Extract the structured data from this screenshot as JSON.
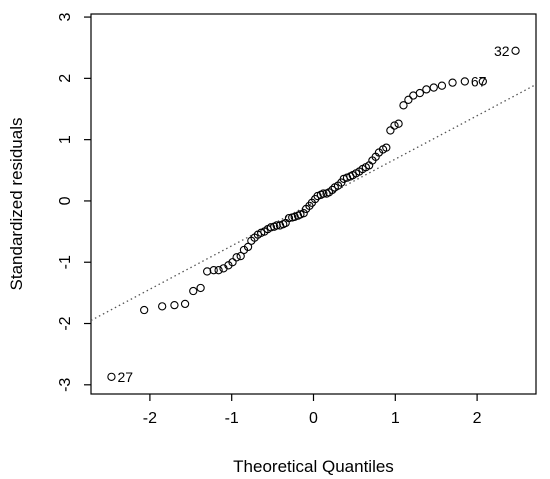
{
  "chart_data": {
    "type": "scatter",
    "title": "",
    "xlabel": "Theoretical Quantiles",
    "ylabel": "Standardized residuals",
    "xlim": [
      -2.72,
      2.72
    ],
    "ylim": [
      -3.15,
      3.05
    ],
    "xticks": [
      "-2",
      "-1",
      "0",
      "1",
      "2"
    ],
    "yticks": [
      "-3",
      "-2",
      "-1",
      "0",
      "1",
      "2",
      "3"
    ],
    "grid": false,
    "marker": "open-circle",
    "reference_line": {
      "style": "dotted",
      "color": "#555555",
      "points": [
        [
          -2.72,
          -1.95
        ],
        [
          2.72,
          1.9
        ]
      ]
    },
    "points": [
      [
        -2.47,
        -2.87
      ],
      [
        -2.07,
        -1.78
      ],
      [
        -1.85,
        -1.72
      ],
      [
        -1.7,
        -1.7
      ],
      [
        -1.57,
        -1.68
      ],
      [
        -1.47,
        -1.47
      ],
      [
        -1.38,
        -1.42
      ],
      [
        -1.3,
        -1.15
      ],
      [
        -1.22,
        -1.13
      ],
      [
        -1.16,
        -1.13
      ],
      [
        -1.1,
        -1.1
      ],
      [
        -1.04,
        -1.05
      ],
      [
        -0.99,
        -1.0
      ],
      [
        -0.94,
        -0.92
      ],
      [
        -0.89,
        -0.9
      ],
      [
        -0.85,
        -0.8
      ],
      [
        -0.8,
        -0.75
      ],
      [
        -0.76,
        -0.65
      ],
      [
        -0.72,
        -0.6
      ],
      [
        -0.68,
        -0.55
      ],
      [
        -0.64,
        -0.52
      ],
      [
        -0.6,
        -0.5
      ],
      [
        -0.56,
        -0.46
      ],
      [
        -0.52,
        -0.43
      ],
      [
        -0.48,
        -0.42
      ],
      [
        -0.45,
        -0.4
      ],
      [
        -0.41,
        -0.4
      ],
      [
        -0.37,
        -0.38
      ],
      [
        -0.34,
        -0.36
      ],
      [
        -0.3,
        -0.28
      ],
      [
        -0.26,
        -0.27
      ],
      [
        -0.23,
        -0.26
      ],
      [
        -0.19,
        -0.24
      ],
      [
        -0.16,
        -0.22
      ],
      [
        -0.12,
        -0.2
      ],
      [
        -0.09,
        -0.13
      ],
      [
        -0.05,
        -0.08
      ],
      [
        -0.02,
        -0.03
      ],
      [
        0.02,
        0.03
      ],
      [
        0.05,
        0.08
      ],
      [
        0.09,
        0.1
      ],
      [
        0.12,
        0.12
      ],
      [
        0.16,
        0.12
      ],
      [
        0.19,
        0.14
      ],
      [
        0.23,
        0.18
      ],
      [
        0.26,
        0.22
      ],
      [
        0.3,
        0.25
      ],
      [
        0.34,
        0.3
      ],
      [
        0.37,
        0.36
      ],
      [
        0.41,
        0.38
      ],
      [
        0.45,
        0.4
      ],
      [
        0.48,
        0.42
      ],
      [
        0.52,
        0.45
      ],
      [
        0.56,
        0.48
      ],
      [
        0.6,
        0.52
      ],
      [
        0.64,
        0.55
      ],
      [
        0.68,
        0.58
      ],
      [
        0.72,
        0.66
      ],
      [
        0.76,
        0.72
      ],
      [
        0.8,
        0.79
      ],
      [
        0.85,
        0.84
      ],
      [
        0.89,
        0.87
      ],
      [
        0.94,
        1.15
      ],
      [
        0.99,
        1.23
      ],
      [
        1.04,
        1.26
      ],
      [
        1.1,
        1.56
      ],
      [
        1.16,
        1.65
      ],
      [
        1.22,
        1.72
      ],
      [
        1.3,
        1.76
      ],
      [
        1.38,
        1.82
      ],
      [
        1.47,
        1.85
      ],
      [
        1.57,
        1.88
      ],
      [
        1.7,
        1.93
      ],
      [
        1.85,
        1.95
      ],
      [
        2.07,
        1.95
      ],
      [
        2.47,
        2.45
      ]
    ],
    "point_labels": [
      {
        "text": "27",
        "x": -2.47,
        "y": -2.87,
        "side": "right"
      },
      {
        "text": "32",
        "x": 2.47,
        "y": 2.45,
        "side": "left"
      },
      {
        "text": "67",
        "x": 1.85,
        "y": 1.95,
        "side": "right"
      }
    ]
  }
}
